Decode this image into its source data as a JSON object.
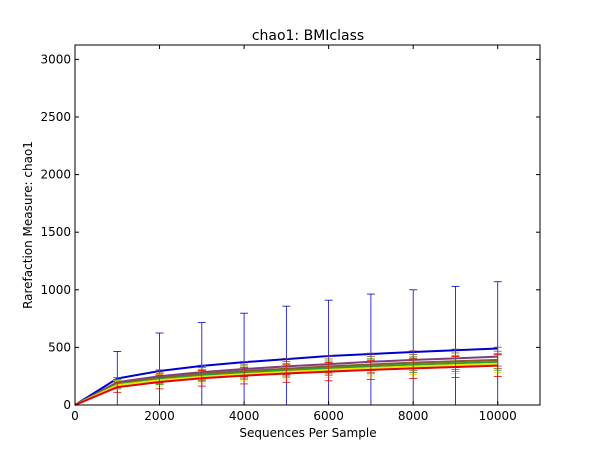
{
  "chart_data": {
    "type": "line",
    "title": "chao1: BMIclass",
    "xlabel": "Sequences Per Sample",
    "ylabel": "Rarefaction Measure: chao1",
    "xlim": [
      0,
      11000
    ],
    "ylim": [
      0,
      3125
    ],
    "x_ticks": [
      "0",
      "2000",
      "4000",
      "6000",
      "8000",
      "10000"
    ],
    "y_ticks": [
      "0",
      "500",
      "1000",
      "1500",
      "2000",
      "2500",
      "3000"
    ],
    "grid": false,
    "legend": "none",
    "x": [
      0,
      1000,
      2000,
      3000,
      4000,
      5000,
      6000,
      7000,
      8000,
      9000,
      10000
    ],
    "series": [
      {
        "color": "#0000cc",
        "values": [
          0,
          230,
          295,
          340,
          372,
          398,
          425,
          443,
          460,
          475,
          490
        ],
        "errors": [
          0,
          235,
          330,
          375,
          425,
          460,
          485,
          520,
          540,
          555,
          580
        ]
      },
      {
        "color": "#7f3f7f",
        "values": [
          0,
          198,
          250,
          285,
          312,
          335,
          355,
          375,
          392,
          405,
          420
        ],
        "errors": [
          0,
          40,
          55,
          60,
          65,
          70,
          72,
          75,
          78,
          80,
          82
        ]
      },
      {
        "color": "#8b5a2b",
        "values": [
          0,
          188,
          235,
          270,
          295,
          315,
          335,
          352,
          368,
          380,
          392
        ],
        "errors": [
          0,
          35,
          50,
          55,
          60,
          62,
          65,
          68,
          70,
          72,
          75
        ]
      },
      {
        "color": "#339933",
        "values": [
          0,
          180,
          225,
          258,
          282,
          302,
          320,
          336,
          350,
          362,
          374
        ],
        "errors": [
          0,
          35,
          48,
          52,
          58,
          60,
          62,
          65,
          68,
          70,
          72
        ]
      },
      {
        "color": "#e6e600",
        "values": [
          0,
          172,
          215,
          245,
          268,
          288,
          305,
          320,
          334,
          346,
          358
        ],
        "errors": [
          0,
          38,
          50,
          55,
          60,
          62,
          65,
          68,
          70,
          72,
          75
        ]
      },
      {
        "color": "#e60000",
        "values": [
          0,
          155,
          200,
          232,
          255,
          273,
          290,
          305,
          318,
          330,
          342
        ],
        "errors": [
          0,
          45,
          60,
          68,
          72,
          76,
          80,
          84,
          88,
          92,
          95
        ]
      }
    ]
  }
}
